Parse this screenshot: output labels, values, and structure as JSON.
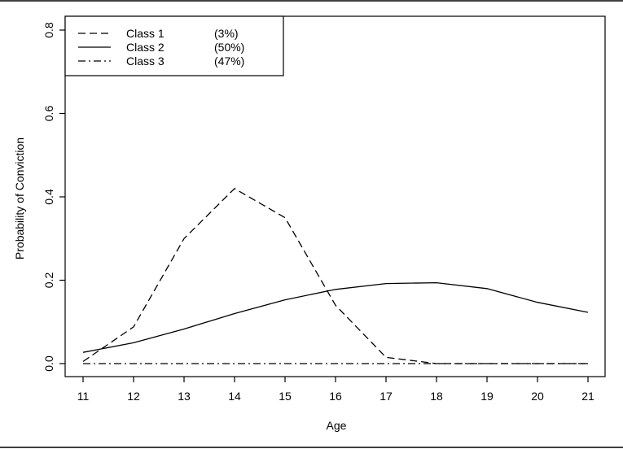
{
  "chart_data": {
    "type": "line",
    "xlabel": "Age",
    "ylabel": "Probability of Conviction",
    "x": [
      11,
      12,
      13,
      14,
      15,
      16,
      17,
      18,
      19,
      20,
      21
    ],
    "xlim": [
      11,
      21
    ],
    "ylim": [
      0.0,
      0.8
    ],
    "x_ticks": [
      "11",
      "12",
      "13",
      "14",
      "15",
      "16",
      "17",
      "18",
      "19",
      "20",
      "21"
    ],
    "y_ticks": [
      "0.0",
      "0.2",
      "0.4",
      "0.6",
      "0.8"
    ],
    "y_tick_values": [
      0.0,
      0.2,
      0.4,
      0.6,
      0.8
    ],
    "grid": false,
    "legend_position": "top-left",
    "series": [
      {
        "name": "Class 1",
        "share": "(3%)",
        "dash": "dashed",
        "values": [
          0.005,
          0.088,
          0.3,
          0.42,
          0.35,
          0.14,
          0.015,
          0.0,
          0.0,
          0.0,
          0.0
        ]
      },
      {
        "name": "Class 2",
        "share": "(50%)",
        "dash": "solid",
        "values": [
          0.027,
          0.05,
          0.083,
          0.12,
          0.153,
          0.178,
          0.192,
          0.194,
          0.18,
          0.147,
          0.123
        ]
      },
      {
        "name": "Class 3",
        "share": "(47%)",
        "dash": "dashdot",
        "values": [
          0.0,
          0.0,
          0.0,
          0.0,
          0.0,
          0.0,
          0.0,
          0.0,
          0.0,
          0.0,
          0.0
        ]
      }
    ]
  }
}
